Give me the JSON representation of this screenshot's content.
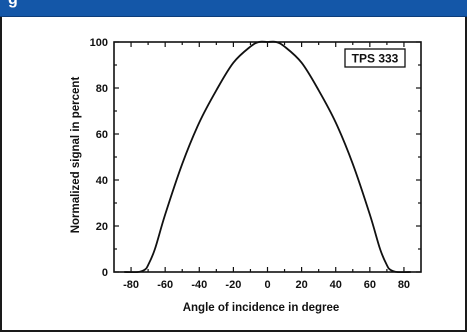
{
  "header": {
    "title_fragment": "g",
    "bar_color": "#1457a8"
  },
  "chart_data": {
    "type": "line",
    "title": "",
    "xlabel": "Angle of incidence in degree",
    "ylabel": "Normalized signal in percent",
    "xlim": [
      -90,
      90
    ],
    "ylim": [
      0,
      100
    ],
    "xticks": [
      -80,
      -60,
      -40,
      -20,
      0,
      20,
      40,
      60,
      80
    ],
    "yticks": [
      0,
      20,
      40,
      60,
      80,
      100
    ],
    "grid": false,
    "legend": {
      "text": "TPS 333",
      "placement": "top-right"
    },
    "series": [
      {
        "color": "#111111",
        "x": [
          -84,
          -76,
          -72,
          -70,
          -66,
          -60,
          -50,
          -40,
          -30,
          -20,
          -10,
          -5,
          0,
          5,
          10,
          20,
          30,
          40,
          50,
          60,
          66,
          70,
          72,
          76,
          84
        ],
        "y": [
          0,
          0,
          1,
          3,
          10,
          25,
          47,
          65,
          79,
          91,
          98,
          100,
          100,
          100,
          98,
          91,
          79,
          65,
          47,
          25,
          10,
          3,
          1,
          0,
          0
        ]
      }
    ]
  }
}
